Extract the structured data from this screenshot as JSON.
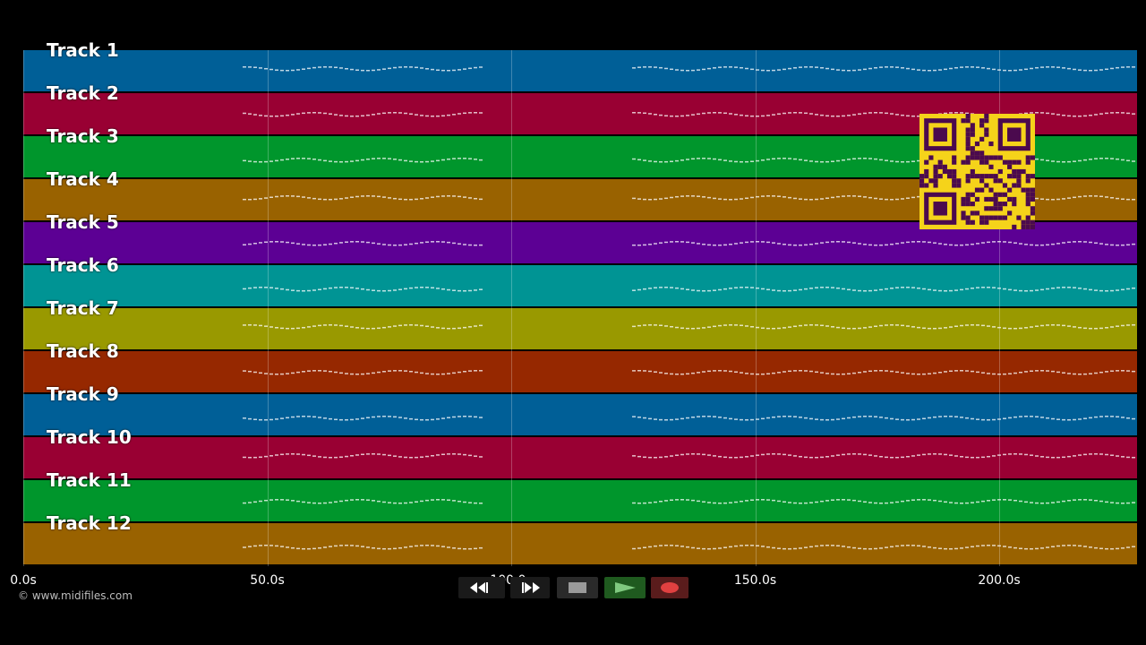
{
  "tracks": [
    {
      "name": "Track 1",
      "color": "#005f97"
    },
    {
      "name": "Track 2",
      "color": "#990033"
    },
    {
      "name": "Track 3",
      "color": "#00962c"
    },
    {
      "name": "Track 4",
      "color": "#996200"
    },
    {
      "name": "Track 5",
      "color": "#5c0094"
    },
    {
      "name": "Track 6",
      "color": "#009494"
    },
    {
      "name": "Track 7",
      "color": "#999900"
    },
    {
      "name": "Track 8",
      "color": "#962800"
    },
    {
      "name": "Track 9",
      "color": "#005f97"
    },
    {
      "name": "Track 10",
      "color": "#990033"
    },
    {
      "name": "Track 11",
      "color": "#00962c"
    },
    {
      "name": "Track 12",
      "color": "#996200"
    }
  ],
  "axis": {
    "ticks": [
      "0.0s",
      "50.0s",
      "100.0s",
      "150.0s",
      "200.0s"
    ],
    "tick_values": [
      0,
      50,
      100,
      150,
      200
    ],
    "max_seconds": 228
  },
  "footer": {
    "copyright": "© www.midifiles.com"
  },
  "transport": {
    "rewind_icon": "rewind-icon",
    "fast_forward_icon": "fast-forward-icon",
    "stop_icon": "stop-icon",
    "play_icon": "play-icon",
    "record_icon": "record-icon"
  }
}
